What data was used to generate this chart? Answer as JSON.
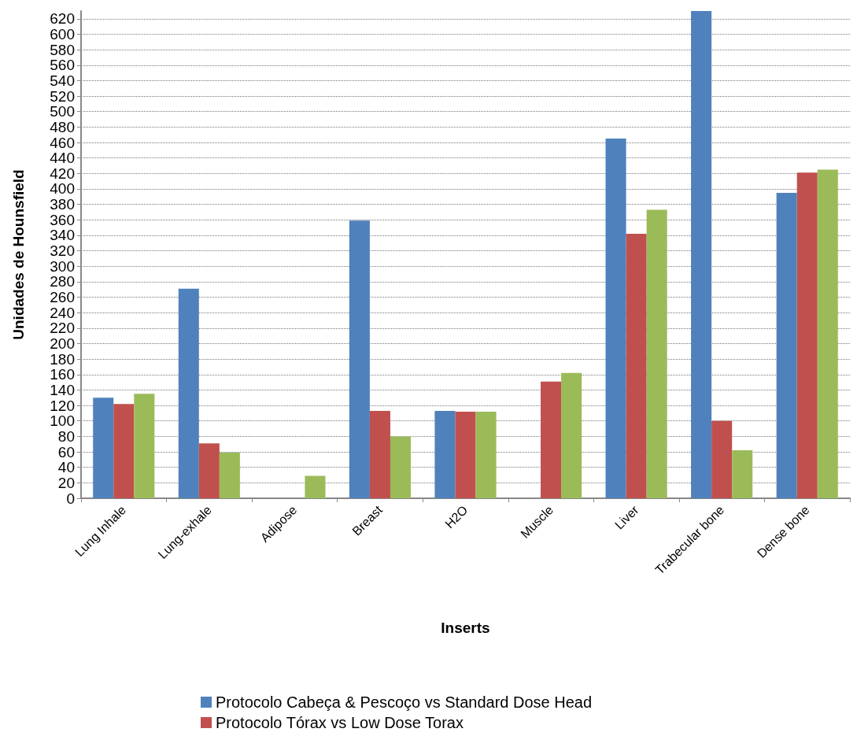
{
  "chart_data": {
    "type": "bar",
    "xlabel": "Inserts",
    "ylabel": "Unidades de Hounsfield",
    "categories": [
      "Lung Inhale",
      "Lung-exhale",
      "Adipose",
      "Breast",
      "H2O",
      "Muscle",
      "Liver",
      "Trabecular bone",
      "Dense bone"
    ],
    "series": [
      {
        "name": "Protocolo Cabeça & Pescoço vs Standard Dose Head",
        "color": "#4f81bd",
        "values": [
          130,
          271,
          null,
          359,
          113,
          null,
          465,
          630,
          395
        ]
      },
      {
        "name": "Protocolo Tórax vs Low Dose Torax",
        "color": "#c0504d",
        "values": [
          122,
          71,
          null,
          113,
          112,
          151,
          342,
          100,
          421
        ]
      },
      {
        "color": "#9bbb59",
        "values": [
          135,
          59,
          29,
          80,
          112,
          162,
          373,
          62,
          425
        ]
      }
    ],
    "ylim": [
      0,
      630
    ],
    "yticks": [
      0,
      20,
      40,
      60,
      80,
      100,
      120,
      140,
      160,
      180,
      200,
      220,
      240,
      260,
      280,
      300,
      320,
      340,
      360,
      380,
      400,
      420,
      440,
      460,
      480,
      500,
      520,
      540,
      560,
      580,
      600,
      620
    ],
    "grid": "y",
    "legend": "bottom"
  }
}
